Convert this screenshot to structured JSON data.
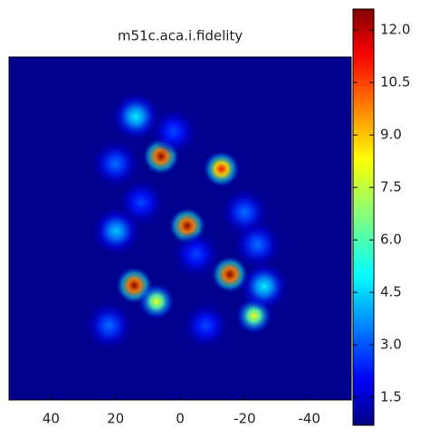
{
  "chart_data": {
    "type": "image",
    "title": "m51c.aca.i.fidelity",
    "colormap": "jet",
    "xlim": [
      53,
      -53
    ],
    "ylim": [
      -53,
      53
    ],
    "xticks": [
      40,
      20,
      0,
      -20,
      -40
    ],
    "clim": [
      0.7,
      12.6
    ],
    "cticks": [
      {
        "value": 1.5,
        "label": "1.5"
      },
      {
        "value": 3.0,
        "label": "3.0"
      },
      {
        "value": 4.5,
        "label": "4.5"
      },
      {
        "value": 6.0,
        "label": "6.0"
      },
      {
        "value": 7.5,
        "label": "7.5"
      },
      {
        "value": 9.0,
        "label": "9.0"
      },
      {
        "value": 10.5,
        "label": "10.5"
      },
      {
        "value": 12.0,
        "label": "12.0"
      }
    ],
    "x": [
      5.9,
      -12.8,
      -2.2,
      14.2,
      -15.4,
      -22.9,
      7.3,
      13.7,
      19.8,
      -26,
      20,
      2,
      -20,
      -24,
      12,
      -5,
      22,
      -8
    ],
    "y": [
      22.3,
      18.4,
      0.8,
      -17.6,
      -14.2,
      -27,
      -22.6,
      34.6,
      -0.8,
      -17.9,
      20,
      30,
      5,
      -5,
      8,
      -8,
      -30,
      -30
    ],
    "values": [
      12.5,
      11,
      12.5,
      12.5,
      12.5,
      8,
      8,
      5,
      4.5,
      5,
      3.5,
      3,
      3.5,
      3.5,
      3,
      3,
      3.5,
      3
    ]
  }
}
